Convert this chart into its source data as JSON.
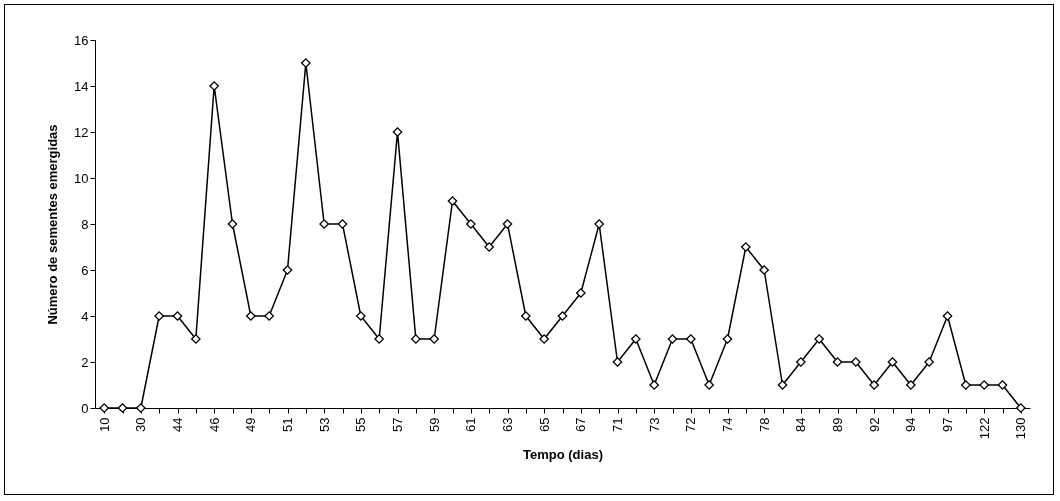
{
  "chart_data": {
    "type": "line",
    "xlabel": "Tempo (dias)",
    "ylabel": "Número de sementes emergidas",
    "categories": [
      "10",
      null,
      "30",
      null,
      "44",
      null,
      "46",
      null,
      "49",
      null,
      "51",
      null,
      "53",
      null,
      "55",
      null,
      "57",
      null,
      "59",
      null,
      "61",
      null,
      "63",
      null,
      "65",
      null,
      "67",
      null,
      "71",
      null,
      "73",
      null,
      "72",
      null,
      "74",
      null,
      "78",
      null,
      "84",
      null,
      "89",
      null,
      "92",
      null,
      "94",
      null,
      "97",
      null,
      "122",
      null,
      "130"
    ],
    "series": [
      {
        "color": "#000000",
        "values": [
          0,
          0,
          0,
          4,
          4,
          3,
          14,
          8,
          4,
          4,
          6,
          15,
          8,
          8,
          4,
          3,
          12,
          3,
          3,
          9,
          8,
          7,
          8,
          4,
          3,
          4,
          5,
          8,
          2,
          3,
          1,
          3,
          3,
          1,
          3,
          7,
          6,
          1,
          2,
          3,
          2,
          2,
          1,
          2,
          1,
          2,
          4,
          1,
          1,
          1,
          0
        ]
      }
    ],
    "ylim": [
      0,
      16
    ],
    "yticks": [
      0,
      2,
      4,
      6,
      8,
      10,
      12,
      14,
      16
    ],
    "grid": false,
    "legend": false,
    "marker": "diamond",
    "line_style": "solid"
  }
}
